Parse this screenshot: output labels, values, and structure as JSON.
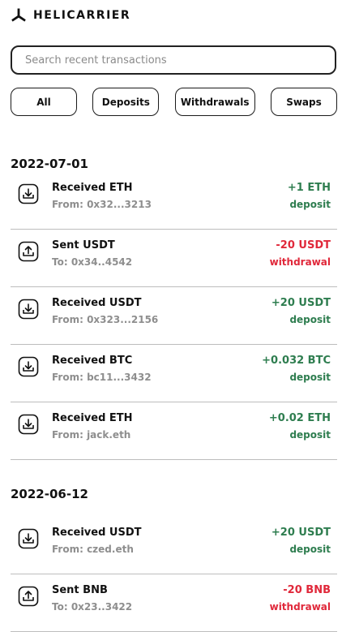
{
  "app": {
    "brand": "HELICARRIER",
    "logo_icon": "helicarrier-logo-icon"
  },
  "search": {
    "placeholder": "Search recent transactions",
    "value": ""
  },
  "filters": [
    {
      "label": "All"
    },
    {
      "label": "Deposits"
    },
    {
      "label": "Withdrawals"
    },
    {
      "label": "Swaps"
    }
  ],
  "colors": {
    "positive": "#2e7d4f",
    "negative": "#e0283a",
    "muted": "#8e8e8e"
  },
  "groups": [
    {
      "date": "2022-07-01",
      "transactions": [
        {
          "icon": "download-icon",
          "title": "Received ETH",
          "counterparty": "From: 0x32...3213",
          "amount": "+1 ETH",
          "type": "deposit"
        },
        {
          "icon": "upload-icon",
          "title": "Sent USDT",
          "counterparty": "To: 0x34..4542",
          "amount": "-20 USDT",
          "type": "withdrawal"
        },
        {
          "icon": "download-icon",
          "title": "Received USDT",
          "counterparty": "From: 0x323...2156",
          "amount": "+20 USDT",
          "type": "deposit"
        },
        {
          "icon": "download-icon",
          "title": "Received BTC",
          "counterparty": "From: bc11...3432",
          "amount": "+0.032 BTC",
          "type": "deposit"
        },
        {
          "icon": "download-icon",
          "title": "Received ETH",
          "counterparty": "From: jack.eth",
          "amount": "+0.02 ETH",
          "type": "deposit"
        }
      ]
    },
    {
      "date": "2022-06-12",
      "transactions": [
        {
          "icon": "download-icon",
          "title": "Received USDT",
          "counterparty": "From: czed.eth",
          "amount": "+20 USDT",
          "type": "deposit"
        },
        {
          "icon": "upload-icon",
          "title": "Sent BNB",
          "counterparty": "To: 0x23..3422",
          "amount": "-20 BNB",
          "type": "withdrawal"
        }
      ]
    }
  ]
}
